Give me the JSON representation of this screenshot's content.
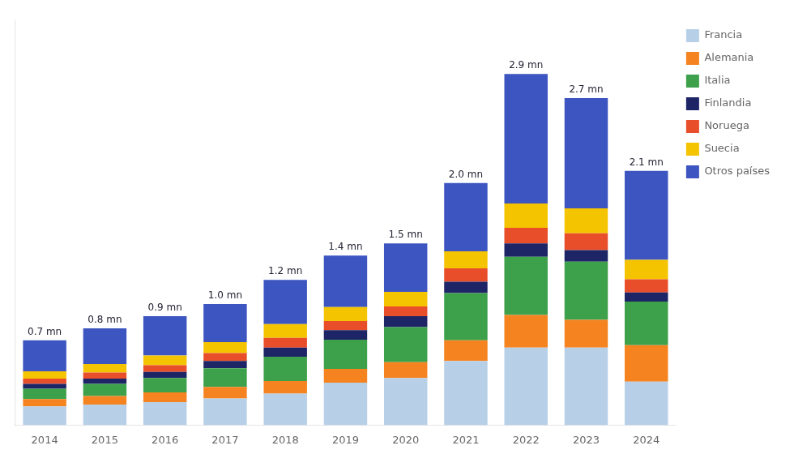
{
  "chart_data": {
    "type": "bar",
    "stacked": true,
    "categories": [
      "2014",
      "2015",
      "2016",
      "2017",
      "2018",
      "2019",
      "2020",
      "2021",
      "2022",
      "2023",
      "2024"
    ],
    "series": [
      {
        "name": "Francia",
        "color": "#b8cfe8",
        "values": [
          0.155,
          0.17,
          0.19,
          0.22,
          0.26,
          0.35,
          0.39,
          0.53,
          0.64,
          0.64,
          0.36
        ]
      },
      {
        "name": "Alemania",
        "color": "#f5831f",
        "values": [
          0.06,
          0.07,
          0.08,
          0.095,
          0.105,
          0.115,
          0.13,
          0.17,
          0.27,
          0.23,
          0.3
        ]
      },
      {
        "name": "Italia",
        "color": "#3da04a",
        "values": [
          0.085,
          0.1,
          0.12,
          0.155,
          0.2,
          0.24,
          0.29,
          0.39,
          0.48,
          0.48,
          0.36
        ]
      },
      {
        "name": "Finlandia",
        "color": "#1e2566",
        "values": [
          0.04,
          0.045,
          0.05,
          0.06,
          0.075,
          0.08,
          0.09,
          0.095,
          0.11,
          0.095,
          0.075
        ]
      },
      {
        "name": "Noruega",
        "color": "#e84e2a",
        "values": [
          0.045,
          0.05,
          0.055,
          0.065,
          0.08,
          0.075,
          0.08,
          0.11,
          0.13,
          0.14,
          0.11
        ]
      },
      {
        "name": "Suecia",
        "color": "#f5c400",
        "values": [
          0.06,
          0.07,
          0.08,
          0.09,
          0.115,
          0.115,
          0.12,
          0.14,
          0.2,
          0.205,
          0.16
        ]
      },
      {
        "name": "Otros países",
        "color": "#3d55c0",
        "values": [
          0.255,
          0.295,
          0.325,
          0.315,
          0.365,
          0.425,
          0.4,
          0.565,
          1.07,
          0.91,
          0.735
        ]
      }
    ],
    "annotations": [
      {
        "x": "2014",
        "y": 0.7,
        "text": "0.7 mn"
      },
      {
        "x": "2015",
        "y": 0.8,
        "text": "0.8 mn"
      },
      {
        "x": "2016",
        "y": 0.9,
        "text": "0.9 mn"
      },
      {
        "x": "2017",
        "y": 1.0,
        "text": "1.0 mn"
      },
      {
        "x": "2018",
        "y": 1.2,
        "text": "1.2 mn"
      },
      {
        "x": "2019",
        "y": 1.4,
        "text": "1.4 mn"
      },
      {
        "x": "2020",
        "y": 1.5,
        "text": "1.5 mn"
      },
      {
        "x": "2021",
        "y": 2.0,
        "text": "2.0 mn"
      },
      {
        "x": "2022",
        "y": 2.9,
        "text": "2.9 mn"
      },
      {
        "x": "2023",
        "y": 2.7,
        "text": "2.7 mn"
      },
      {
        "x": "2024",
        "y": 2.1,
        "text": "2.1 mn"
      }
    ],
    "ylim": [
      0,
      3.35
    ],
    "tick_labels": "x",
    "grid": false,
    "legend": "right"
  }
}
